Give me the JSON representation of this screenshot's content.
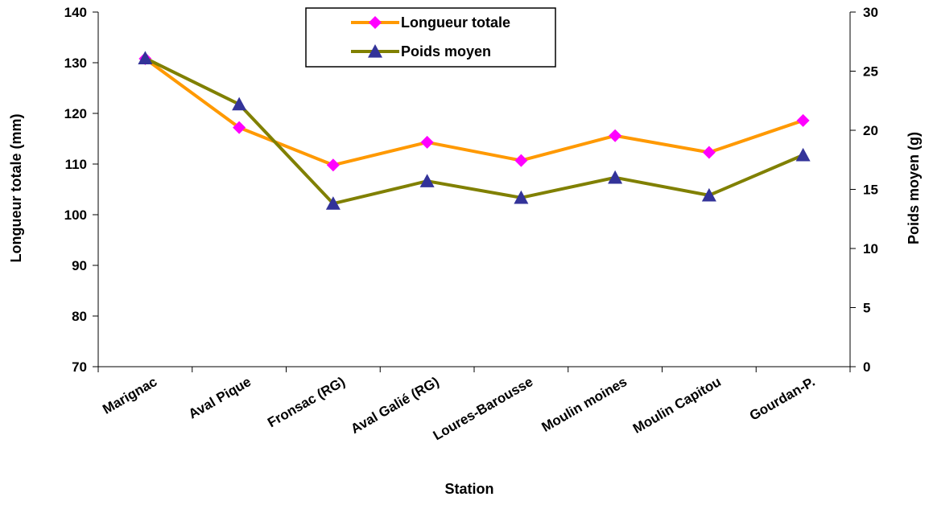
{
  "chart_data": {
    "type": "line",
    "title": "",
    "xlabel": "Station",
    "ylabel_left": "Longueur totale (mm)",
    "ylabel_right": "Poids moyen (g)",
    "categories": [
      "Marignac",
      "Aval Pique",
      "Fronsac (RG)",
      "Aval Galié (RG)",
      "Loures-Barousse",
      "Moulin moines",
      "Moulin Capitou",
      "Gourdan-P."
    ],
    "y_left": {
      "lim": [
        70,
        140
      ],
      "ticks": [
        70,
        80,
        90,
        100,
        110,
        120,
        130,
        140
      ]
    },
    "y_right": {
      "lim": [
        0,
        30
      ],
      "ticks": [
        0,
        5,
        10,
        15,
        20,
        25,
        30
      ]
    },
    "grid": false,
    "legend": {
      "position": "top-center",
      "box": true
    },
    "series": [
      {
        "name": "Longueur totale",
        "axis": "left",
        "color": "#FF9900",
        "marker": "diamond",
        "marker_color": "#FF00FF",
        "values": [
          130.8,
          117.2,
          109.8,
          114.3,
          110.7,
          115.6,
          112.3,
          118.6
        ]
      },
      {
        "name": "Poids moyen",
        "axis": "right",
        "color": "#808000",
        "marker": "triangle",
        "marker_color": "#333399",
        "values": [
          26.1,
          22.2,
          13.8,
          15.7,
          14.3,
          16.0,
          14.5,
          17.9
        ]
      }
    ]
  }
}
